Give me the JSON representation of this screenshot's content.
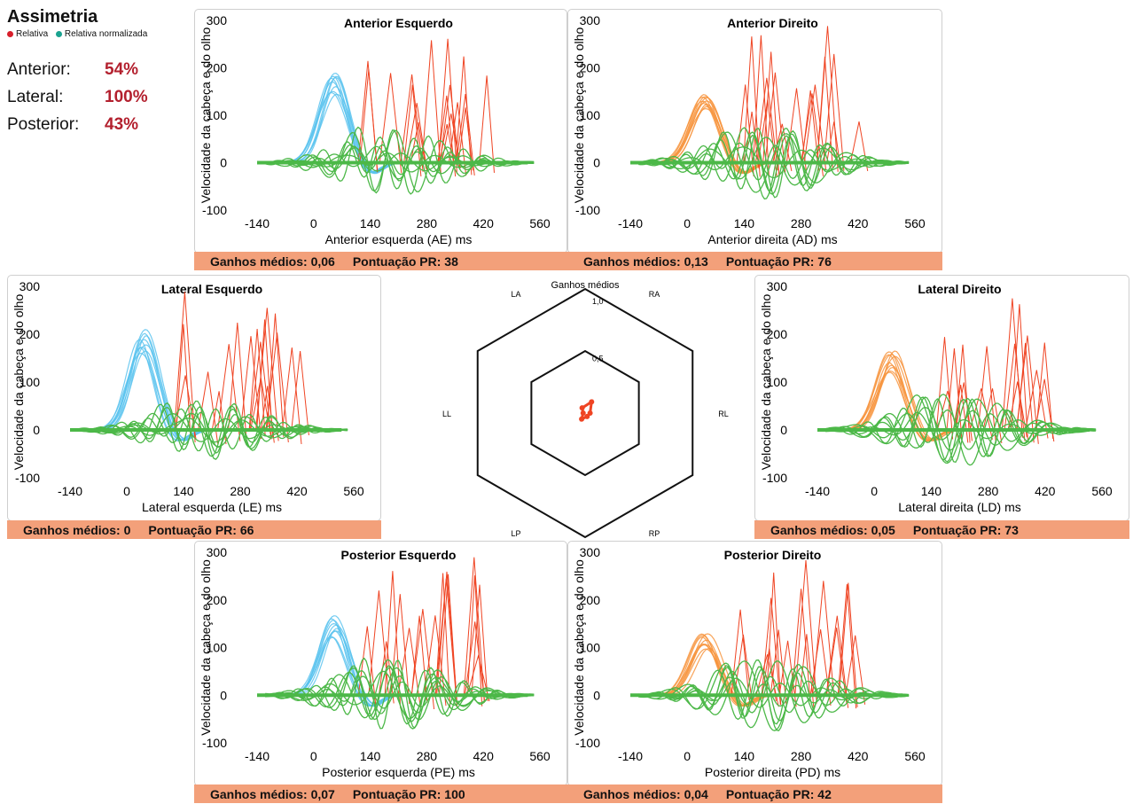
{
  "asymmetry": {
    "title": "Assimetria",
    "legend": [
      {
        "label": "Relativa",
        "color": "#d81f2b"
      },
      {
        "label": "Relativa normalizada",
        "color": "#1aa390"
      }
    ],
    "rows": [
      {
        "label": "Anterior:",
        "value": "54%"
      },
      {
        "label": "Lateral:",
        "value": "100%"
      },
      {
        "label": "Posterior:",
        "value": "43%"
      }
    ]
  },
  "colors": {
    "eye": "#4cb848",
    "saccade": "#ef4423",
    "head_left": "#5bc3ee",
    "head_right": "#f7943d",
    "footer": "#f3a07a"
  },
  "panels": [
    {
      "id": "AE",
      "title": "Anterior Esquerdo",
      "xlabel": "Anterior esquerda (AE) ms",
      "ylabel": "Velocidade da cabeça e do olho",
      "head": "left",
      "footer_gain": "Ganhos médios: 0,06",
      "footer_score": "Pontuação PR: 38"
    },
    {
      "id": "AD",
      "title": "Anterior Direito",
      "xlabel": "Anterior direita (AD) ms",
      "ylabel": "Velocidade da cabeça e do olho",
      "head": "right",
      "footer_gain": "Ganhos médios: 0,13",
      "footer_score": "Pontuação PR: 76"
    },
    {
      "id": "LE",
      "title": "Lateral Esquerdo",
      "xlabel": "Lateral esquerda (LE) ms",
      "ylabel": "Velocidade da cabeça e do olho",
      "head": "left",
      "footer_gain": "Ganhos médios: 0",
      "footer_score": "Pontuação PR: 66"
    },
    {
      "id": "LD",
      "title": "Lateral Direito",
      "xlabel": "Lateral direita (LD) ms",
      "ylabel": "Velocidade da cabeça e do olho",
      "head": "right",
      "footer_gain": "Ganhos médios: 0,05",
      "footer_score": "Pontuação PR: 73"
    },
    {
      "id": "PE",
      "title": "Posterior Esquerdo",
      "xlabel": "Posterior esquerda (PE) ms",
      "ylabel": "Velocidade da cabeça e do olho",
      "head": "left",
      "footer_gain": "Ganhos médios: 0,07",
      "footer_score": "Pontuação PR: 100"
    },
    {
      "id": "PD",
      "title": "Posterior Direito",
      "xlabel": "Posterior direita (PD) ms",
      "ylabel": "Velocidade da cabeça e do olho",
      "head": "right",
      "footer_gain": "Ganhos médios: 0,04",
      "footer_score": "Pontuação PR: 42"
    }
  ],
  "chart_data": [
    {
      "type": "line",
      "panel": "AE",
      "title": "Anterior Esquerdo",
      "xlabel": "Anterior esquerda (AE) ms",
      "ylabel": "Velocidade da cabeça e do olho",
      "xlim": [
        -140,
        560
      ],
      "ylim": [
        -100,
        300
      ],
      "xticks": [
        -140,
        0,
        140,
        280,
        420,
        560
      ],
      "yticks": [
        -100,
        0,
        100,
        200,
        300
      ],
      "head_peak": 180,
      "head_peak_time": 50
    },
    {
      "type": "line",
      "panel": "AD",
      "title": "Anterior Direito",
      "xlabel": "Anterior direita (AD) ms",
      "ylabel": "Velocidade da cabeça e do olho",
      "xlim": [
        -140,
        560
      ],
      "ylim": [
        -100,
        300
      ],
      "xticks": [
        -140,
        0,
        140,
        280,
        420,
        560
      ],
      "yticks": [
        -100,
        0,
        100,
        200,
        300
      ],
      "head_peak": 145,
      "head_peak_time": 45
    },
    {
      "type": "line",
      "panel": "LE",
      "title": "Lateral Esquerdo",
      "xlabel": "Lateral esquerda (LE) ms",
      "ylabel": "Velocidade da cabeça e do olho",
      "xlim": [
        -140,
        560
      ],
      "ylim": [
        -100,
        300
      ],
      "xticks": [
        -140,
        0,
        140,
        280,
        420,
        560
      ],
      "yticks": [
        -100,
        0,
        100,
        200,
        300
      ],
      "head_peak": 210,
      "head_peak_time": 40
    },
    {
      "type": "line",
      "panel": "LD",
      "title": "Lateral Direito",
      "xlabel": "Lateral direita (LD) ms",
      "ylabel": "Velocidade da cabeça e do olho",
      "xlim": [
        -140,
        560
      ],
      "ylim": [
        -100,
        300
      ],
      "xticks": [
        -140,
        0,
        140,
        280,
        420,
        560
      ],
      "yticks": [
        -100,
        0,
        100,
        200,
        300
      ],
      "head_peak": 160,
      "head_peak_time": 45
    },
    {
      "type": "line",
      "panel": "PE",
      "title": "Posterior Esquerdo",
      "xlabel": "Posterior esquerda (PE) ms",
      "ylabel": "Velocidade da cabeça e do olho",
      "xlim": [
        -140,
        560
      ],
      "ylim": [
        -100,
        300
      ],
      "xticks": [
        -140,
        0,
        140,
        280,
        420,
        560
      ],
      "yticks": [
        -100,
        0,
        100,
        200,
        300
      ],
      "head_peak": 160,
      "head_peak_time": 50
    },
    {
      "type": "line",
      "panel": "PD",
      "title": "Posterior Direito",
      "xlabel": "Posterior direita (PD) ms",
      "ylabel": "Velocidade da cabeça e do olho",
      "xlim": [
        -140,
        560
      ],
      "ylim": [
        -100,
        300
      ],
      "xticks": [
        -140,
        0,
        140,
        280,
        420,
        560
      ],
      "yticks": [
        -100,
        0,
        100,
        200,
        300
      ],
      "head_peak": 125,
      "head_peak_time": 45
    },
    {
      "type": "radar",
      "title": "Ganhos médios",
      "axes": [
        "LA",
        "RA",
        "RL",
        "RP",
        "LP",
        "LL"
      ],
      "rings": [
        0.5,
        1.0
      ],
      "ring_labels": [
        "0,5",
        "1,0"
      ],
      "values": {
        "LA": 0.06,
        "RA": 0.13,
        "RL": 0.05,
        "RP": 0.04,
        "LP": 0.07,
        "LL": 0.0
      }
    }
  ]
}
